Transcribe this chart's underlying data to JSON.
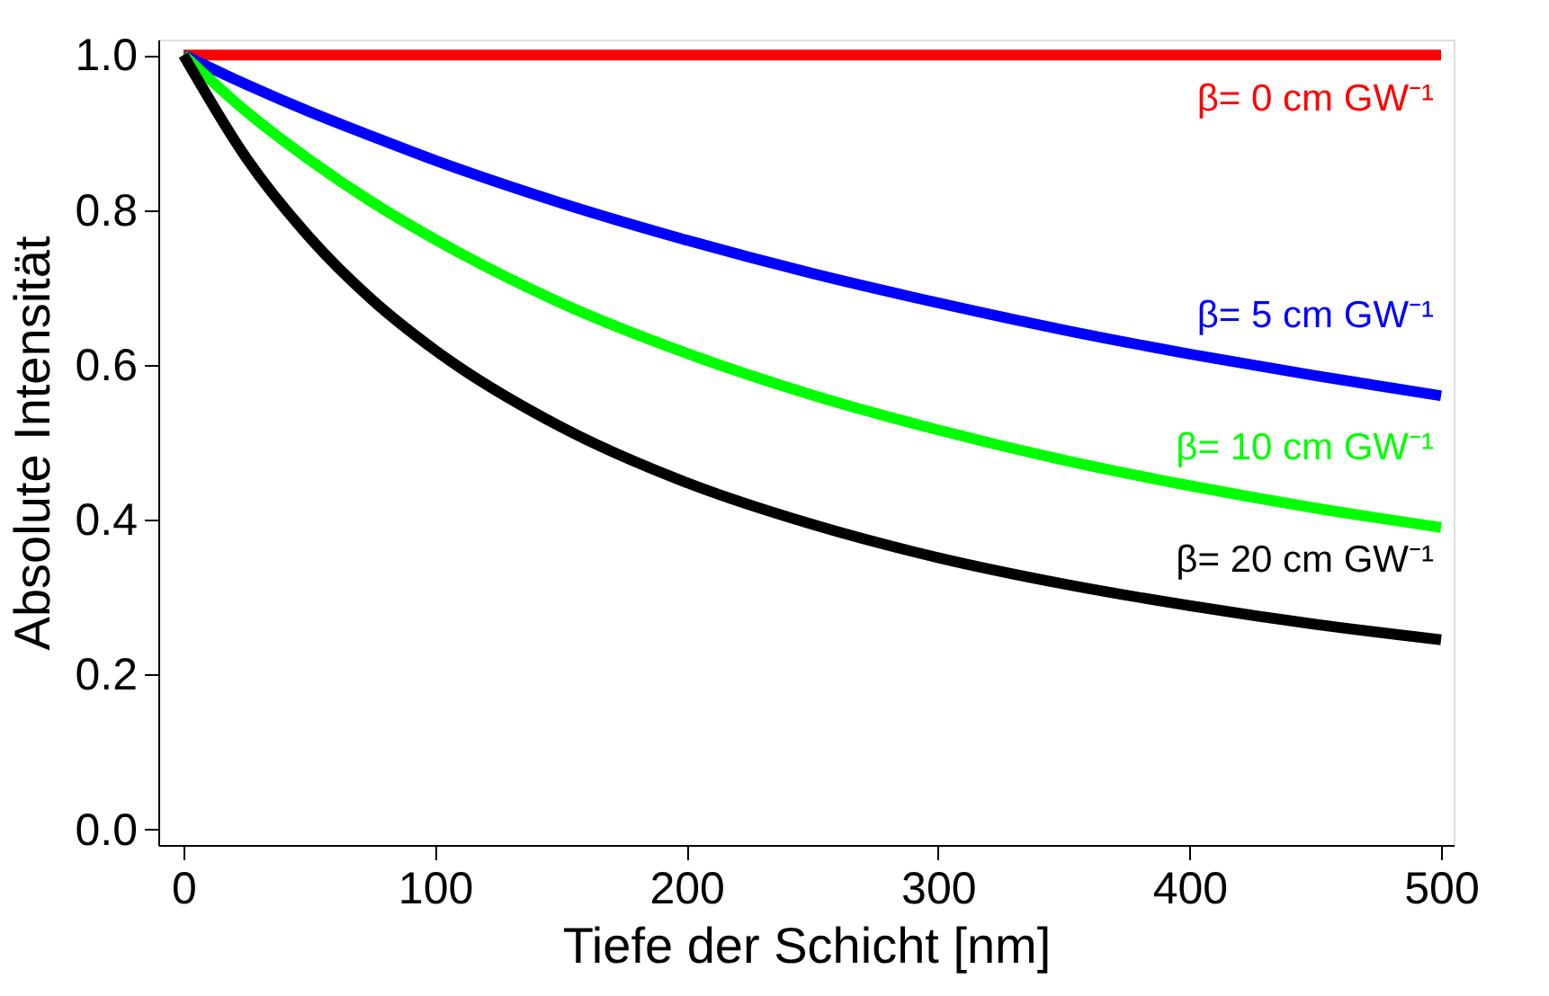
{
  "chart_data": {
    "type": "line",
    "xlabel": "Tiefe der Schicht [nm]",
    "ylabel": "Absolute Intensität",
    "x": [
      0,
      25,
      50,
      75,
      100,
      150,
      200,
      250,
      300,
      350,
      400,
      450,
      500
    ],
    "series": [
      {
        "name": "β= 0 cm GW⁻¹",
        "color": "#ff0000",
        "values": [
          1,
          1,
          1,
          1,
          1,
          1,
          1,
          1,
          1,
          1,
          1,
          1,
          1
        ]
      },
      {
        "name": "β= 5 cm GW⁻¹",
        "color": "#0000ff",
        "values": [
          1,
          0.962,
          0.927,
          0.895,
          0.864,
          0.809,
          0.761,
          0.718,
          0.68,
          0.645,
          0.614,
          0.586,
          0.56
        ]
      },
      {
        "name": "β= 10 cm GW⁻¹",
        "color": "#00ff00",
        "values": [
          1,
          0.927,
          0.865,
          0.81,
          0.762,
          0.68,
          0.615,
          0.561,
          0.516,
          0.477,
          0.444,
          0.415,
          0.39
        ]
      },
      {
        "name": "β= 20 cm GW⁻¹",
        "color": "#000000",
        "values": [
          1,
          0.867,
          0.765,
          0.684,
          0.619,
          0.52,
          0.448,
          0.394,
          0.351,
          0.317,
          0.289,
          0.265,
          0.245
        ]
      }
    ],
    "xlim": [
      -10,
      505
    ],
    "ylim": [
      -0.02,
      1.02
    ],
    "xticks": [
      0,
      100,
      200,
      300,
      400,
      500
    ],
    "yticks": [
      {
        "value": 0,
        "label": "0.0"
      },
      {
        "value": 0.2,
        "label": "0.2"
      },
      {
        "value": 0.4,
        "label": "0.4"
      },
      {
        "value": 0.6,
        "label": "0.6"
      },
      {
        "value": 0.8,
        "label": "0.8"
      },
      {
        "value": 1,
        "label": "1.0"
      }
    ],
    "grid": false,
    "legend": false,
    "marker": "none",
    "line_style": "solid"
  }
}
